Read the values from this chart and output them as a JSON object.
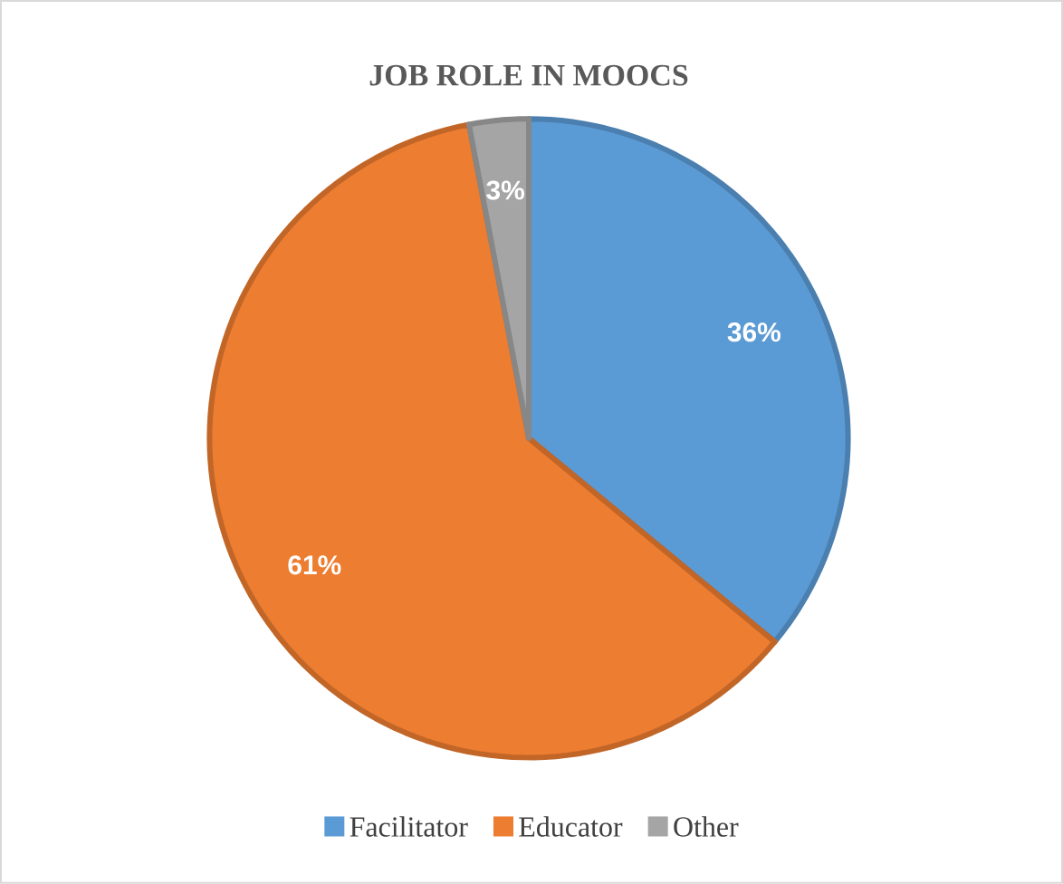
{
  "chart_data": {
    "type": "pie",
    "title": "JOB ROLE IN MOOCS",
    "categories": [
      "Facilitator",
      "Educator",
      "Other"
    ],
    "values": [
      36,
      61,
      3
    ],
    "value_labels": [
      "36%",
      "61%",
      "3%"
    ],
    "colors": [
      "#5b9bd5",
      "#ed7d31",
      "#a5a5a5"
    ],
    "legend": "bottom"
  }
}
